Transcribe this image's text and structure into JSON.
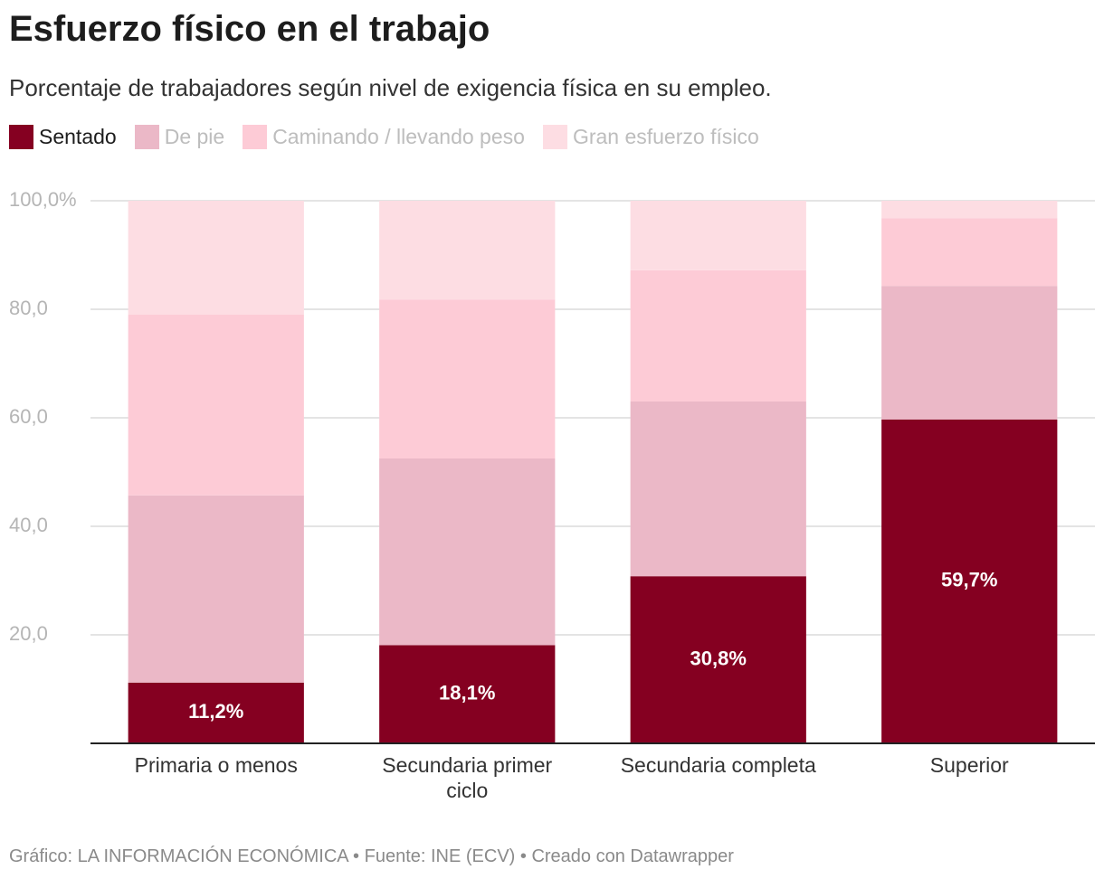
{
  "chart_data": {
    "type": "stacked-bar",
    "title": "Esfuerzo físico en el trabajo",
    "subtitle": "Porcentaje de trabajadores según nivel de exigencia física en su empleo.",
    "footer": "Gráfico: LA INFORMACIÓN ECONÓMICA • Fuente: INE (ECV) • Creado con Datawrapper",
    "categories": [
      "Primaria o menos",
      "Secundaria primer ciclo",
      "Secundaria completa",
      "Superior"
    ],
    "series": [
      {
        "name": "Sentado",
        "color": "#850021",
        "values": [
          11.2,
          18.1,
          30.8,
          59.7
        ],
        "value_labels": [
          "11,2%",
          "18,1%",
          "30,8%",
          "59,7%"
        ]
      },
      {
        "name": "De pie",
        "color": "#ebb8c7",
        "values": [
          34.5,
          34.4,
          32.2,
          24.6
        ]
      },
      {
        "name": "Caminando / llevando peso",
        "color": "#fdcbd6",
        "values": [
          33.3,
          29.3,
          24.2,
          12.5
        ]
      },
      {
        "name": "Gran esfuerzo físico",
        "color": "#fddde3",
        "values": [
          21.0,
          18.2,
          12.8,
          3.2
        ]
      }
    ],
    "ylim": [
      0,
      100
    ],
    "yticks": [
      {
        "value": 20,
        "label": "20,0"
      },
      {
        "value": 40,
        "label": "40,0"
      },
      {
        "value": 60,
        "label": "60,0"
      },
      {
        "value": 80,
        "label": "80,0"
      },
      {
        "value": 100,
        "label": "100,0%"
      }
    ],
    "grid": true
  }
}
